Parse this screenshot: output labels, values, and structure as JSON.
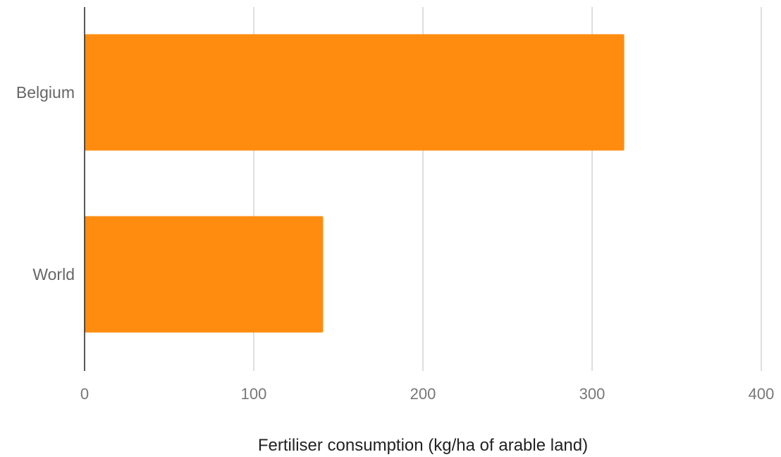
{
  "chart_data": {
    "type": "bar",
    "orientation": "horizontal",
    "title": "",
    "xlabel": "Fertiliser consumption (kg/ha of arable land)",
    "ylabel": "",
    "categories": [
      "Belgium",
      "World"
    ],
    "values": [
      319,
      141
    ],
    "xlim": [
      0,
      400
    ],
    "xticks": [
      0,
      100,
      200,
      300,
      400
    ],
    "xtick_labels": [
      "0",
      "100",
      "200",
      "300",
      "400"
    ],
    "grid": true,
    "legend": "none",
    "bar_color": "#FF8C0F",
    "grid_color": "#D3D3D3",
    "axis_color": "#222222"
  }
}
